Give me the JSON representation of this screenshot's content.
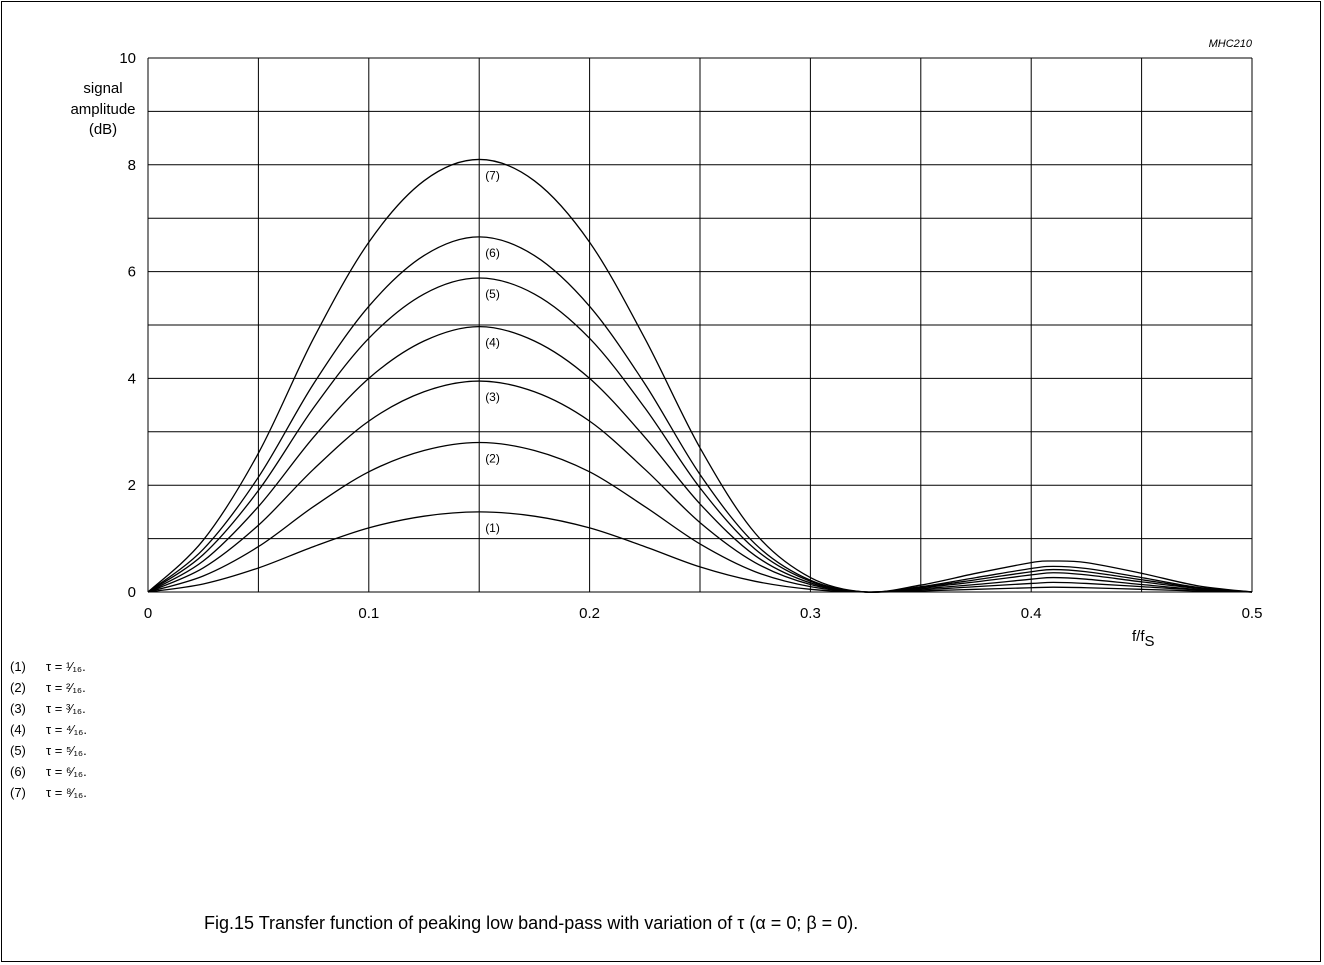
{
  "figure": {
    "id": "MHC210",
    "caption": "Fig.15  Transfer function of peaking low band-pass with variation of τ (α = 0; β = 0)."
  },
  "legend": [
    {
      "num": "(1)",
      "tau": "τ = ¹⁄₁₆."
    },
    {
      "num": "(2)",
      "tau": "τ = ²⁄₁₆."
    },
    {
      "num": "(3)",
      "tau": "τ = ³⁄₁₆."
    },
    {
      "num": "(4)",
      "tau": "τ = ⁴⁄₁₆."
    },
    {
      "num": "(5)",
      "tau": "τ = ⁵⁄₁₆."
    },
    {
      "num": "(6)",
      "tau": "τ = ⁶⁄₁₆."
    },
    {
      "num": "(7)",
      "tau": "τ = ⁸⁄₁₆."
    }
  ],
  "chart_data": {
    "type": "line",
    "title": "",
    "xlabel": "f/fs",
    "ylabel": [
      "signal",
      "amplitude",
      "(dB)"
    ],
    "xlim": [
      0,
      0.5
    ],
    "ylim": [
      0,
      10
    ],
    "xticks": [
      0,
      0.1,
      0.2,
      0.3,
      0.4,
      0.5
    ],
    "xtick_labels": [
      "0",
      "0.1",
      "0.2",
      "0.3",
      "0.4",
      "0.5"
    ],
    "yticks": [
      0,
      2,
      4,
      6,
      8,
      10
    ],
    "ytick_labels": [
      "0",
      "2",
      "4",
      "6",
      "8",
      "10"
    ],
    "x_grid": [
      0,
      0.05,
      0.1,
      0.15,
      0.2,
      0.25,
      0.3,
      0.35,
      0.4,
      0.45,
      0.5
    ],
    "y_grid": [
      0,
      1,
      2,
      3,
      4,
      5,
      6,
      7,
      8,
      9,
      10
    ],
    "grid": true,
    "x": [
      0,
      0.025,
      0.05,
      0.075,
      0.1,
      0.125,
      0.15,
      0.175,
      0.2,
      0.225,
      0.25,
      0.275,
      0.3,
      0.325,
      0.35,
      0.375,
      0.4,
      0.41,
      0.425,
      0.45,
      0.475,
      0.5
    ],
    "series": [
      {
        "name": "(1)",
        "values": [
          0,
          0.15,
          0.45,
          0.85,
          1.2,
          1.42,
          1.5,
          1.42,
          1.2,
          0.85,
          0.47,
          0.2,
          0.05,
          0,
          0.02,
          0.05,
          0.08,
          0.09,
          0.08,
          0.05,
          0.02,
          0
        ]
      },
      {
        "name": "(2)",
        "values": [
          0,
          0.3,
          0.85,
          1.6,
          2.25,
          2.65,
          2.8,
          2.65,
          2.25,
          1.6,
          0.9,
          0.38,
          0.1,
          0,
          0.04,
          0.1,
          0.16,
          0.18,
          0.16,
          0.1,
          0.04,
          0
        ]
      },
      {
        "name": "(3)",
        "values": [
          0,
          0.45,
          1.25,
          2.3,
          3.2,
          3.75,
          3.95,
          3.75,
          3.2,
          2.3,
          1.3,
          0.55,
          0.14,
          0,
          0.06,
          0.14,
          0.24,
          0.27,
          0.24,
          0.14,
          0.05,
          0
        ]
      },
      {
        "name": "(4)",
        "values": [
          0,
          0.58,
          1.6,
          2.9,
          4.0,
          4.7,
          4.97,
          4.7,
          4.0,
          2.9,
          1.65,
          0.68,
          0.17,
          0,
          0.08,
          0.19,
          0.32,
          0.36,
          0.32,
          0.19,
          0.07,
          0
        ]
      },
      {
        "name": "(5)",
        "values": [
          0,
          0.7,
          1.9,
          3.45,
          4.75,
          5.58,
          5.88,
          5.58,
          4.75,
          3.45,
          1.95,
          0.8,
          0.2,
          0,
          0.09,
          0.23,
          0.38,
          0.42,
          0.38,
          0.23,
          0.08,
          0
        ]
      },
      {
        "name": "(6)",
        "values": [
          0,
          0.8,
          2.15,
          3.9,
          5.35,
          6.3,
          6.65,
          6.3,
          5.35,
          3.9,
          2.2,
          0.9,
          0.22,
          0,
          0.1,
          0.27,
          0.44,
          0.48,
          0.44,
          0.27,
          0.09,
          0
        ]
      },
      {
        "name": "(7)",
        "values": [
          0,
          0.97,
          2.6,
          4.75,
          6.55,
          7.7,
          8.1,
          7.7,
          6.55,
          4.75,
          2.7,
          1.1,
          0.27,
          0,
          0.13,
          0.35,
          0.55,
          0.58,
          0.55,
          0.35,
          0.12,
          0
        ]
      }
    ]
  }
}
